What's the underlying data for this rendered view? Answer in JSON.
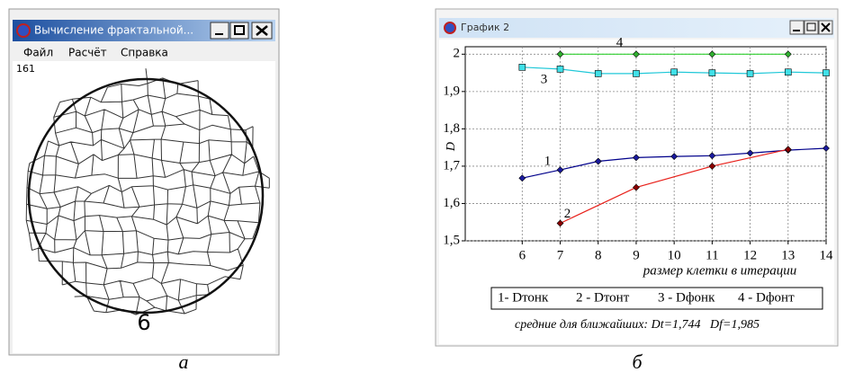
{
  "left_window": {
    "title": "Вычисление фрактальной...",
    "menu": [
      "Файл",
      "Расчёт",
      "Справка"
    ],
    "counter": "161",
    "image_caption": "6",
    "panel_caption": "а"
  },
  "right_window": {
    "title": "График 2",
    "panel_caption": "б",
    "footer": "средние для ближайших: Dt=1,744   Df=1,985"
  },
  "chart_data": {
    "type": "line",
    "x_label": "размер клетки в итерации",
    "y_label": "D",
    "xlim": [
      4.5,
      14
    ],
    "xticks": [
      6,
      7,
      8,
      9,
      10,
      11,
      12,
      13,
      14
    ],
    "ylim": [
      1.5,
      2.02
    ],
    "yticks": [
      {
        "value": 1.5,
        "label": "1,5"
      },
      {
        "value": 1.6,
        "label": "1,6"
      },
      {
        "value": 1.7,
        "label": "1,7"
      },
      {
        "value": 1.8,
        "label": "1,8"
      },
      {
        "value": 1.9,
        "label": "1,9"
      },
      {
        "value": 2,
        "label": "2"
      }
    ],
    "grid": true,
    "series": [
      {
        "name": "1- Dтонк",
        "curve_label": "1",
        "color": "#00008b",
        "marker_color": "#1a1aa0",
        "marker": "diamond",
        "x": [
          6,
          7,
          8,
          9,
          10,
          11,
          12,
          13,
          14
        ],
        "values": [
          1.668,
          1.69,
          1.713,
          1.723,
          1.726,
          1.728,
          1.735,
          1.743,
          1.748
        ]
      },
      {
        "name": "2 - Dтонт",
        "curve_label": "2",
        "color": "#e8201a",
        "marker_color": "#8b0000",
        "marker": "diamond",
        "x": [
          7,
          9,
          11,
          13
        ],
        "values": [
          1.547,
          1.643,
          1.7,
          1.745
        ]
      },
      {
        "name": "3 - Dфонк",
        "curve_label": "3",
        "color": "#20c8d8",
        "marker_color": "#40e0e8",
        "marker": "square",
        "x": [
          6,
          7,
          8,
          9,
          10,
          11,
          12,
          13,
          14
        ],
        "values": [
          1.965,
          1.96,
          1.948,
          1.948,
          1.952,
          1.95,
          1.948,
          1.952,
          1.95
        ]
      },
      {
        "name": "4 - Dфонт",
        "curve_label": "4",
        "color": "#30d030",
        "marker_color": "#30b030",
        "marker": "diamond",
        "x": [
          7,
          9,
          11,
          13
        ],
        "values": [
          2,
          2,
          2,
          2
        ]
      }
    ]
  }
}
